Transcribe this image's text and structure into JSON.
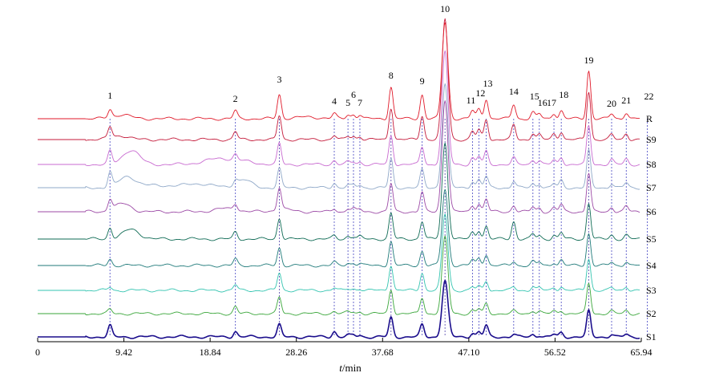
{
  "chart_data": {
    "type": "line",
    "xlabel_italic": "t",
    "xlabel_rest": "/min",
    "xlim": [
      0,
      65.94
    ],
    "xticks": [
      "0",
      "9.42",
      "18.84",
      "28.26",
      "37.68",
      "47.10",
      "56.52",
      "65.94"
    ],
    "xtick_values": [
      0,
      9.42,
      18.84,
      28.26,
      37.68,
      47.1,
      56.52,
      65.94
    ],
    "injection_time": 5.2,
    "series": [
      {
        "name": "S1",
        "color": "#1a0d8c",
        "stroke": 1.6
      },
      {
        "name": "S2",
        "color": "#3aa63a",
        "stroke": 0.9
      },
      {
        "name": "S3",
        "color": "#33c4b0",
        "stroke": 0.9
      },
      {
        "name": "S4",
        "color": "#1f7a7a",
        "stroke": 0.9
      },
      {
        "name": "S5",
        "color": "#0f6b55",
        "stroke": 0.9
      },
      {
        "name": "S6",
        "color": "#9c4aa6",
        "stroke": 0.9
      },
      {
        "name": "S7",
        "color": "#8fa8c8",
        "stroke": 0.9
      },
      {
        "name": "S8",
        "color": "#c86ad0",
        "stroke": 0.9
      },
      {
        "name": "S9",
        "color": "#c41a3a",
        "stroke": 0.9
      },
      {
        "name": "R",
        "color": "#e01a2a",
        "stroke": 0.9
      }
    ],
    "peaks": [
      {
        "label": "1",
        "t": 7.9
      },
      {
        "label": "2",
        "t": 21.6
      },
      {
        "label": "3",
        "t": 26.4
      },
      {
        "label": "4",
        "t": 32.4
      },
      {
        "label": "5",
        "t": 33.9
      },
      {
        "label": "6",
        "t": 34.5
      },
      {
        "label": "7",
        "t": 35.2
      },
      {
        "label": "8",
        "t": 38.6
      },
      {
        "label": "9",
        "t": 42.0
      },
      {
        "label": "10",
        "t": 44.5
      },
      {
        "label": "11",
        "t": 47.5
      },
      {
        "label": "12",
        "t": 48.2
      },
      {
        "label": "13",
        "t": 49.0
      },
      {
        "label": "14",
        "t": 52.0
      },
      {
        "label": "15",
        "t": 54.1
      },
      {
        "label": "16",
        "t": 54.8
      },
      {
        "label": "17",
        "t": 56.4
      },
      {
        "label": "18",
        "t": 57.2
      },
      {
        "label": "19",
        "t": 60.2
      },
      {
        "label": "20",
        "t": 62.7
      },
      {
        "label": "21",
        "t": 64.3
      },
      {
        "label": "22",
        "t": 66.6
      }
    ]
  }
}
